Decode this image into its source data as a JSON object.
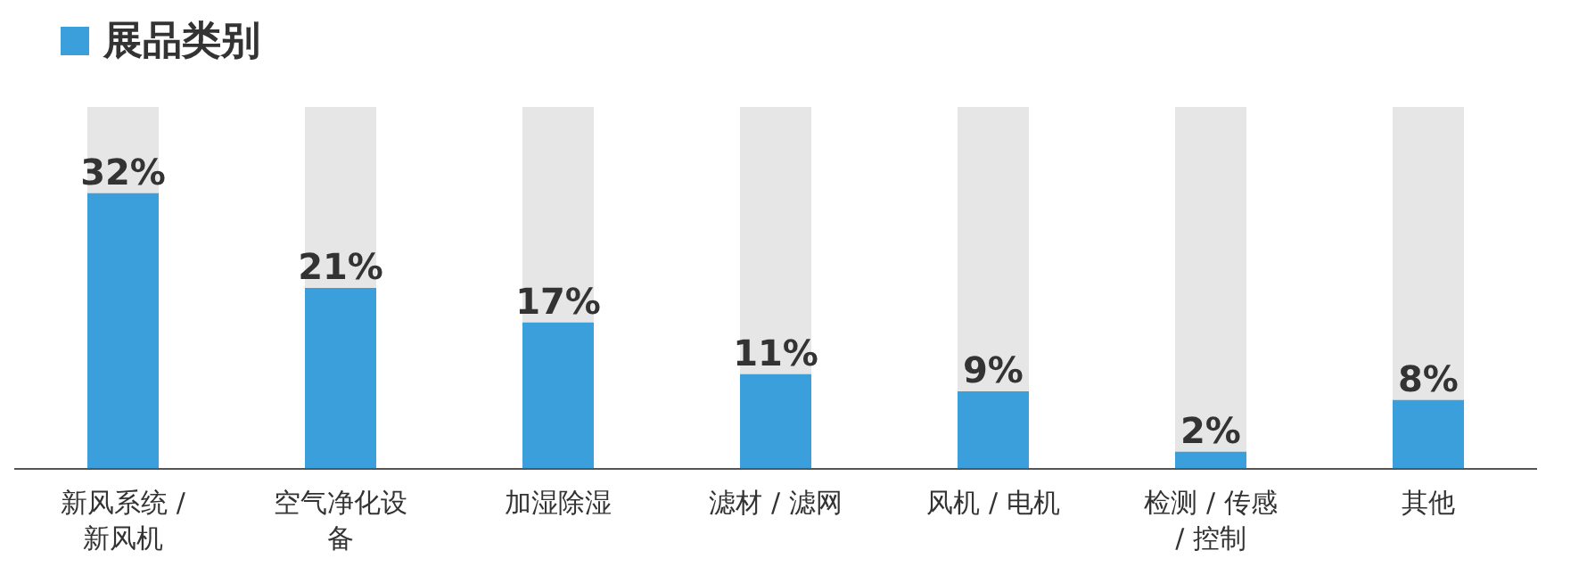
{
  "chart_data": {
    "type": "bar",
    "title": "展品类别",
    "categories": [
      "新风系统 / 新风机",
      "空气净化设备",
      "加湿除湿",
      "滤材 / 滤网",
      "风机 / 电机",
      "检测 / 传感 / 控制",
      "其他"
    ],
    "values": [
      32,
      21,
      17,
      11,
      9,
      2,
      8
    ],
    "value_labels": [
      "32%",
      "21%",
      "17%",
      "11%",
      "9%",
      "2%",
      "8%"
    ],
    "color": "#3a9fdb",
    "ylim": [
      0,
      42
    ],
    "tick_labels": "x"
  }
}
